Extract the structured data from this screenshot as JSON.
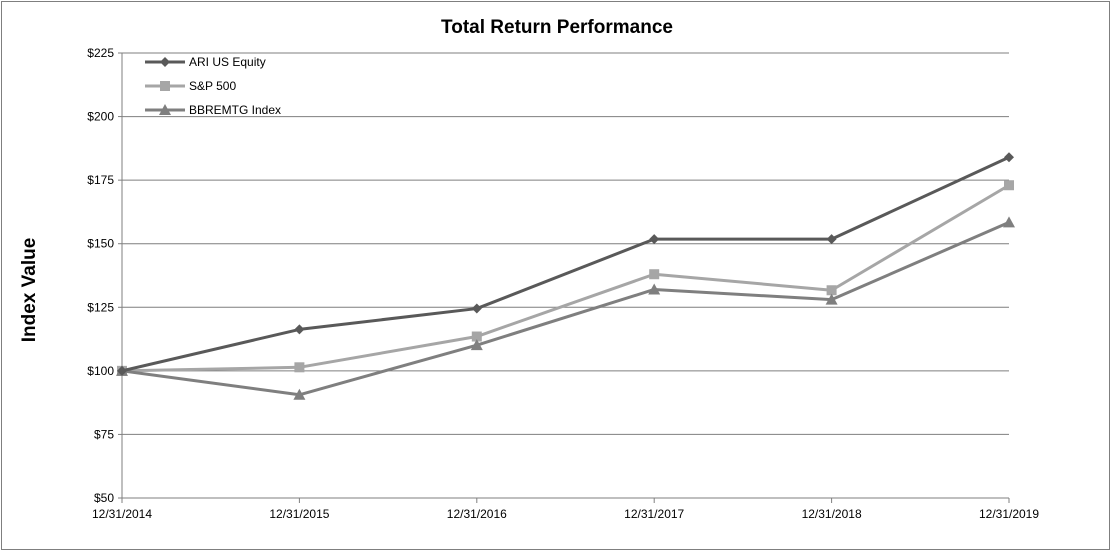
{
  "chart_data": {
    "type": "line",
    "title": "Total Return Performance",
    "xlabel": "",
    "ylabel": "Index Value",
    "categories": [
      "12/31/2014",
      "12/31/2015",
      "12/31/2016",
      "12/31/2017",
      "12/31/2018",
      "12/31/2019"
    ],
    "ylim": [
      50,
      225
    ],
    "yticks": [
      50,
      75,
      100,
      125,
      150,
      175,
      200,
      225
    ],
    "ytick_labels": [
      "$50",
      "$75",
      "$100",
      "$125",
      "$150",
      "$175",
      "$200",
      "$225"
    ],
    "grid": true,
    "legend_position": "top-left",
    "series": [
      {
        "name": "ARI US Equity",
        "values": [
          100,
          116.3,
          124.5,
          151.8,
          151.8,
          184
        ],
        "color": "#595959",
        "marker": "diamond"
      },
      {
        "name": "S&P 500",
        "values": [
          100,
          101.4,
          113.5,
          138,
          131.7,
          173
        ],
        "color": "#a6a6a6",
        "marker": "square"
      },
      {
        "name": "BBREMTG Index",
        "values": [
          100,
          90.6,
          110.1,
          132,
          128,
          158.4
        ],
        "color": "#7f7f7f",
        "marker": "triangle"
      }
    ]
  }
}
